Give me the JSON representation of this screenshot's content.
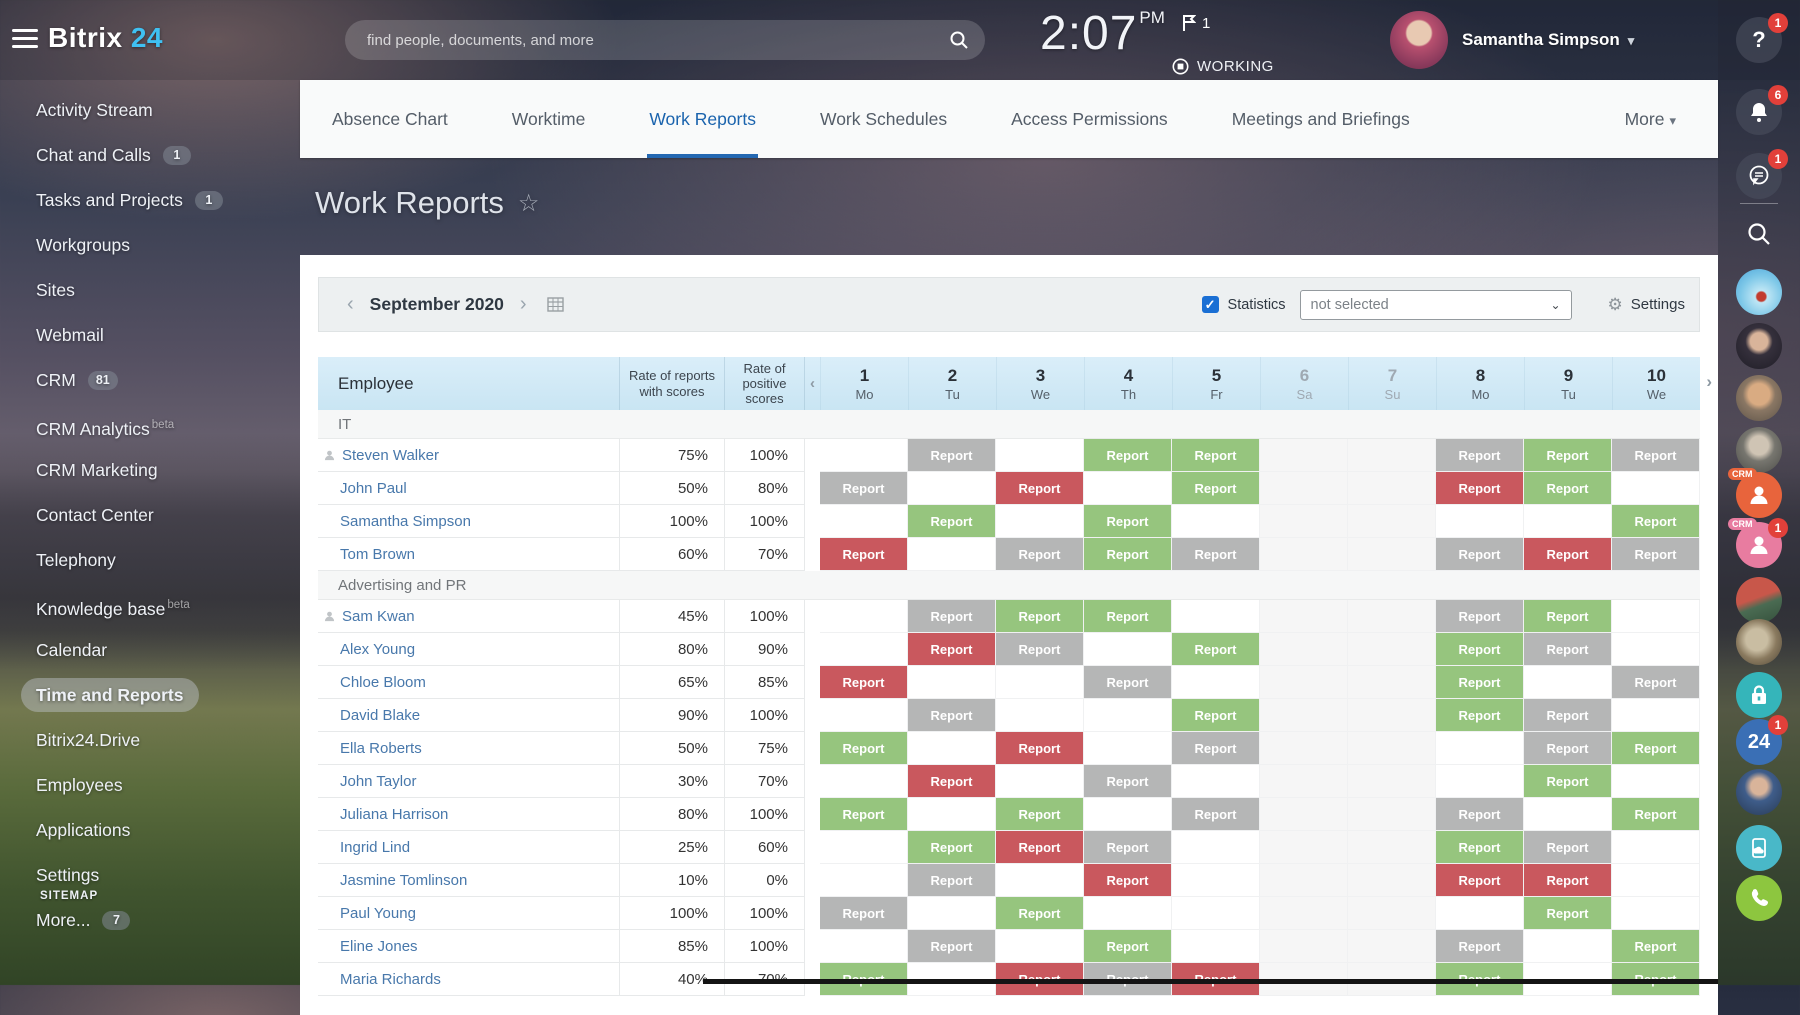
{
  "colors": {
    "accent_blue": "#2468b2",
    "report_gray": "#b5b6b6",
    "report_green": "#96c57e",
    "report_red": "#c9585e",
    "badge_red": "#e2403a"
  },
  "icons": {
    "star": "☆",
    "chev_left": "‹",
    "chev_right": "›",
    "chev_down": "▾",
    "gear": "⚙",
    "check": "✓"
  },
  "topbar": {
    "logo_first": "Bitrix",
    "logo_second": "24",
    "search_placeholder": "find people, documents, and more",
    "time": "2:07",
    "time_suffix": "PM",
    "flag_count": "1",
    "status": "WORKING",
    "user_name": "Samantha Simpson"
  },
  "sidebar": {
    "items": [
      {
        "label": "Activity Stream"
      },
      {
        "label": "Chat and Calls",
        "badge": "1"
      },
      {
        "label": "Tasks and Projects",
        "badge": "1"
      },
      {
        "label": "Workgroups"
      },
      {
        "label": "Sites"
      },
      {
        "label": "Webmail"
      },
      {
        "label": "CRM",
        "badge": "81"
      },
      {
        "label": "CRM Analytics",
        "beta": "beta"
      },
      {
        "label": "CRM Marketing"
      },
      {
        "label": "Contact Center"
      },
      {
        "label": "Telephony"
      },
      {
        "label": "Knowledge base",
        "beta": "beta"
      },
      {
        "label": "Calendar"
      },
      {
        "label": "Time and Reports",
        "active": true
      },
      {
        "label": "Bitrix24.Drive"
      },
      {
        "label": "Employees"
      },
      {
        "label": "Applications"
      },
      {
        "label": "Settings"
      },
      {
        "label": "More...",
        "badge": "7"
      }
    ],
    "sitemap": "SITEMAP"
  },
  "tabs": {
    "items": [
      {
        "label": "Absence Chart"
      },
      {
        "label": "Worktime"
      },
      {
        "label": "Work Reports",
        "active": true
      },
      {
        "label": "Work Schedules"
      },
      {
        "label": "Access Permissions"
      },
      {
        "label": "Meetings and Briefings"
      }
    ],
    "more_label": "More"
  },
  "page": {
    "title": "Work Reports"
  },
  "toolbar": {
    "month": "September 2020",
    "statistics_label": "Statistics",
    "filter_value": "not selected",
    "settings_label": "Settings"
  },
  "table": {
    "employee_header": "Employee",
    "rate_reports_header": "Rate of reports with scores",
    "rate_positive_header": "Rate of positive scores",
    "report_label": "Report",
    "days": [
      {
        "num": "1",
        "dow": "Mo"
      },
      {
        "num": "2",
        "dow": "Tu"
      },
      {
        "num": "3",
        "dow": "We"
      },
      {
        "num": "4",
        "dow": "Th"
      },
      {
        "num": "5",
        "dow": "Fr"
      },
      {
        "num": "6",
        "dow": "Sa",
        "weekend": true
      },
      {
        "num": "7",
        "dow": "Su",
        "weekend": true
      },
      {
        "num": "8",
        "dow": "Mo"
      },
      {
        "num": "9",
        "dow": "Tu"
      },
      {
        "num": "10",
        "dow": "We"
      }
    ],
    "groups": [
      {
        "name": "IT",
        "rows": [
          {
            "name": "Steven Walker",
            "person_icon": true,
            "reports": "75%",
            "positive": "100%",
            "cells": [
              "",
              "gray",
              "",
              "green",
              "green",
              "",
              "",
              "gray",
              "green",
              "gray"
            ]
          },
          {
            "name": "John Paul",
            "reports": "50%",
            "positive": "80%",
            "cells": [
              "gray",
              "",
              "red",
              "",
              "green",
              "",
              "",
              "red",
              "green",
              ""
            ]
          },
          {
            "name": "Samantha Simpson",
            "reports": "100%",
            "positive": "100%",
            "cells": [
              "",
              "green",
              "",
              "green",
              "",
              "",
              "",
              "",
              "",
              "green"
            ]
          },
          {
            "name": "Tom Brown",
            "reports": "60%",
            "positive": "70%",
            "cells": [
              "red",
              "",
              "gray",
              "green",
              "gray",
              "",
              "",
              "gray",
              "red",
              "gray"
            ]
          }
        ]
      },
      {
        "name": "Advertising and PR",
        "rows": [
          {
            "name": "Sam Kwan",
            "person_icon": true,
            "reports": "45%",
            "positive": "100%",
            "cells": [
              "",
              "gray",
              "green",
              "green",
              "",
              "",
              "",
              "gray",
              "green",
              ""
            ]
          },
          {
            "name": "Alex Young",
            "reports": "80%",
            "positive": "90%",
            "cells": [
              "",
              "red",
              "gray",
              "",
              "green",
              "",
              "",
              "green",
              "gray",
              ""
            ]
          },
          {
            "name": "Chloe Bloom",
            "reports": "65%",
            "positive": "85%",
            "cells": [
              "red",
              "",
              "",
              "gray",
              "",
              "",
              "",
              "green",
              "",
              "gray"
            ]
          },
          {
            "name": "David Blake",
            "reports": "90%",
            "positive": "100%",
            "cells": [
              "",
              "gray",
              "",
              "",
              "green",
              "",
              "",
              "green",
              "gray",
              ""
            ]
          },
          {
            "name": "Ella Roberts",
            "reports": "50%",
            "positive": "75%",
            "cells": [
              "green",
              "",
              "red",
              "",
              "gray",
              "",
              "",
              "",
              "gray",
              "green"
            ]
          },
          {
            "name": "John Taylor",
            "reports": "30%",
            "positive": "70%",
            "cells": [
              "",
              "red",
              "",
              "gray",
              "",
              "",
              "",
              "",
              "green",
              ""
            ]
          },
          {
            "name": "Juliana Harrison",
            "reports": "80%",
            "positive": "100%",
            "cells": [
              "green",
              "",
              "green",
              "",
              "gray",
              "",
              "",
              "gray",
              "",
              "green"
            ]
          },
          {
            "name": "Ingrid Lind",
            "reports": "25%",
            "positive": "60%",
            "cells": [
              "",
              "green",
              "red",
              "gray",
              "",
              "",
              "",
              "green",
              "gray",
              ""
            ]
          },
          {
            "name": "Jasmine Tomlinson",
            "reports": "10%",
            "positive": "0%",
            "cells": [
              "",
              "gray",
              "",
              "red",
              "",
              "",
              "",
              "red",
              "red",
              ""
            ]
          },
          {
            "name": "Paul Young",
            "reports": "100%",
            "positive": "100%",
            "cells": [
              "gray",
              "",
              "green",
              "",
              "",
              "",
              "",
              "",
              "green",
              ""
            ]
          },
          {
            "name": "Eline Jones",
            "reports": "85%",
            "positive": "100%",
            "cells": [
              "",
              "gray",
              "",
              "green",
              "",
              "",
              "",
              "gray",
              "",
              "green"
            ]
          },
          {
            "name": "Maria Richards",
            "reports": "40%",
            "positive": "70%",
            "cells": [
              "green",
              "",
              "red",
              "gray",
              "red",
              "",
              "",
              "green",
              "",
              "green"
            ]
          }
        ]
      }
    ]
  },
  "right_rail": {
    "items": [
      {
        "name": "help",
        "glyph": "question",
        "style": "dim",
        "badge": "1"
      },
      {
        "name": "notifications",
        "glyph": "bell",
        "style": "dim",
        "badge": "6"
      },
      {
        "name": "messenger",
        "glyph": "chat",
        "style": "dim",
        "badge": "1"
      },
      {
        "name": "search",
        "glyph": "search",
        "style": "plain"
      },
      {
        "name": "divider",
        "divider": true
      },
      {
        "name": "avatar-illustration",
        "avatar": "sky"
      },
      {
        "name": "avatar-woman",
        "avatar": "woman"
      },
      {
        "name": "avatar-man-beard",
        "avatar": "beard"
      },
      {
        "name": "avatar-man-glasses",
        "avatar": "glasses"
      },
      {
        "name": "crm-contact-orange",
        "glyph": "person",
        "bg": "#e8643c",
        "label": "CRM"
      },
      {
        "name": "crm-contact-pink",
        "glyph": "person",
        "bg": "#e87ca0",
        "label": "CRM",
        "badge": "1"
      },
      {
        "name": "avatar-photo-1",
        "avatar": "photo1"
      },
      {
        "name": "avatar-photo-2",
        "avatar": "photo2"
      },
      {
        "name": "lock",
        "glyph": "lock",
        "bg": "#35b5ba"
      },
      {
        "name": "bitrix24-app",
        "text": "24",
        "bg": "#3a6fb5",
        "badge": "1"
      },
      {
        "name": "avatar-photo-3",
        "avatar": "photo3"
      },
      {
        "name": "mobile-app",
        "glyph": "device",
        "bg": "#49b8c8"
      },
      {
        "name": "call",
        "glyph": "phone",
        "bg": "#8dc63f"
      }
    ]
  }
}
